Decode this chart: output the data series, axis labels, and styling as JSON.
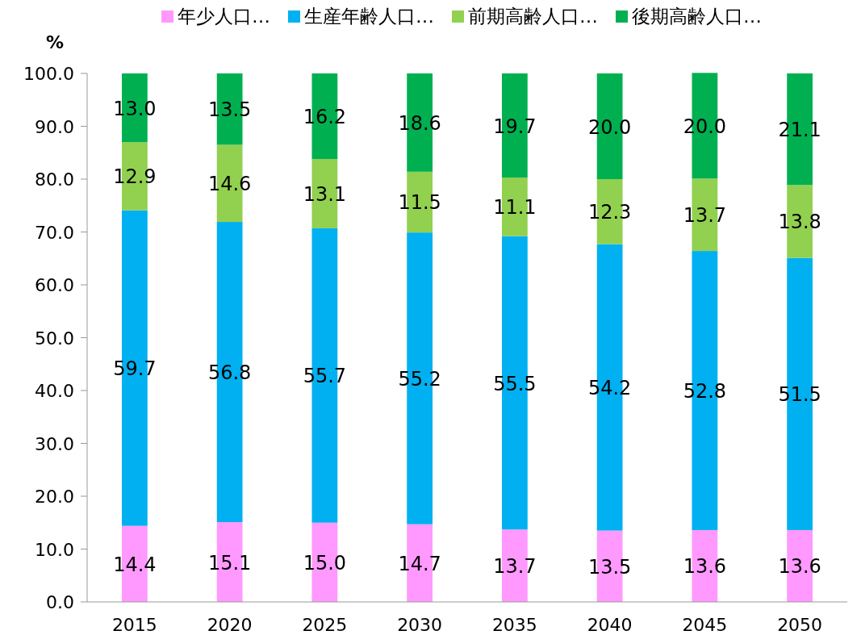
{
  "chart_data": {
    "type": "bar",
    "stacked": true,
    "ylabel": "%",
    "categories": [
      "2015",
      "2020",
      "2025",
      "2030",
      "2035",
      "2040",
      "2045",
      "2050"
    ],
    "series": [
      {
        "name": "年少人口…",
        "color": "#ff99ff",
        "values": [
          14.4,
          15.1,
          15.0,
          14.7,
          13.7,
          13.5,
          13.6,
          13.6
        ],
        "value_labels": [
          "14.4",
          "15.1",
          "15.0",
          "14.7",
          "13.7",
          "13.5",
          "13.6",
          "13.6"
        ]
      },
      {
        "name": "生産年齢人口…",
        "color": "#00b0f0",
        "values": [
          59.7,
          56.8,
          55.7,
          55.2,
          55.5,
          54.2,
          52.8,
          51.5
        ],
        "value_labels": [
          "59.7",
          "56.8",
          "55.7",
          "55.2",
          "55.5",
          "54.2",
          "52.8",
          "51.5"
        ]
      },
      {
        "name": "前期高齢人口…",
        "color": "#92d050",
        "values": [
          12.9,
          14.6,
          13.1,
          11.5,
          11.1,
          12.3,
          13.7,
          13.8
        ],
        "value_labels": [
          "12.9",
          "14.6",
          "13.1",
          "11.5",
          "11.1",
          "12.3",
          "13.7",
          "13.8"
        ]
      },
      {
        "name": "後期高齢人口…",
        "color": "#00b050",
        "values": [
          13.0,
          13.5,
          16.2,
          18.6,
          19.7,
          20.0,
          20.0,
          21.1
        ],
        "value_labels": [
          "13.0",
          "13.5",
          "16.2",
          "18.6",
          "19.7",
          "20.0",
          "20.0",
          "21.1"
        ]
      }
    ],
    "ylim": [
      0,
      100
    ],
    "yticks": [
      {
        "value": 0,
        "label": "0.0"
      },
      {
        "value": 10,
        "label": "10.0"
      },
      {
        "value": 20,
        "label": "20.0"
      },
      {
        "value": 30,
        "label": "30.0"
      },
      {
        "value": 40,
        "label": "40.0"
      },
      {
        "value": 50,
        "label": "50.0"
      },
      {
        "value": 60,
        "label": "60.0"
      },
      {
        "value": 70,
        "label": "70.0"
      },
      {
        "value": 80,
        "label": "80.0"
      },
      {
        "value": 90,
        "label": "90.0"
      },
      {
        "value": 100,
        "label": "100.0"
      }
    ],
    "grid": false,
    "legend": "top"
  }
}
